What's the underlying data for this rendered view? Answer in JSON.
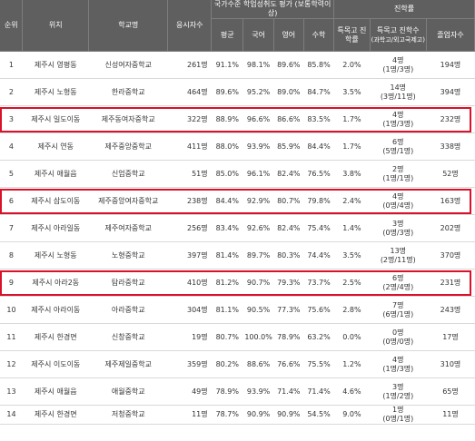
{
  "header": {
    "rank": "순위",
    "location": "위치",
    "school": "학교명",
    "examinees": "응시자수",
    "assessment_group": "국가수준 학업성취도 평가 (보통학력이상)",
    "avg": "평균",
    "korean": "국어",
    "english": "영어",
    "math": "수학",
    "progress_group": "진학률",
    "special_rate": "특목고 진학률",
    "special_count": "특목고 진학수",
    "special_count_sub": "(과학고/외고국제고)",
    "graduates": "졸업자수"
  },
  "rows": [
    {
      "rank": "1",
      "location": "제주시 영평동",
      "school": "신성여자중학교",
      "examinees": "261명",
      "avg": "91.1%",
      "korean": "98.1%",
      "english": "89.6%",
      "math": "85.8%",
      "special_rate": "2.0%",
      "special_count": "4명",
      "special_detail": "(1명/3명)",
      "graduates": "194명",
      "highlight": false
    },
    {
      "rank": "2",
      "location": "제주시 노형동",
      "school": "한라중학교",
      "examinees": "464명",
      "avg": "89.6%",
      "korean": "95.2%",
      "english": "89.0%",
      "math": "84.7%",
      "special_rate": "3.5%",
      "special_count": "14명",
      "special_detail": "(3명/11명)",
      "graduates": "394명",
      "highlight": false
    },
    {
      "rank": "3",
      "location": "제주시 일도이동",
      "school": "제주동여자중학교",
      "examinees": "322명",
      "avg": "88.9%",
      "korean": "96.6%",
      "english": "86.6%",
      "math": "83.5%",
      "special_rate": "1.7%",
      "special_count": "4명",
      "special_detail": "(1명/3명)",
      "graduates": "232명",
      "highlight": true
    },
    {
      "rank": "4",
      "location": "제주시 연동",
      "school": "제주중앙중학교",
      "examinees": "411명",
      "avg": "88.0%",
      "korean": "93.9%",
      "english": "85.9%",
      "math": "84.4%",
      "special_rate": "1.7%",
      "special_count": "6명",
      "special_detail": "(5명/1명)",
      "graduates": "338명",
      "highlight": false
    },
    {
      "rank": "5",
      "location": "제주시 애월읍",
      "school": "신엄중학교",
      "examinees": "51명",
      "avg": "85.0%",
      "korean": "96.1%",
      "english": "82.4%",
      "math": "76.5%",
      "special_rate": "3.8%",
      "special_count": "2명",
      "special_detail": "(1명/1명)",
      "graduates": "52명",
      "highlight": false
    },
    {
      "rank": "6",
      "location": "제주시 삼도이동",
      "school": "제주중앙여자중학교",
      "examinees": "238명",
      "avg": "84.4%",
      "korean": "92.9%",
      "english": "80.7%",
      "math": "79.8%",
      "special_rate": "2.4%",
      "special_count": "4명",
      "special_detail": "(0명/4명)",
      "graduates": "163명",
      "highlight": true
    },
    {
      "rank": "7",
      "location": "제주시 아라일동",
      "school": "제주여자중학교",
      "examinees": "256명",
      "avg": "83.4%",
      "korean": "92.6%",
      "english": "82.4%",
      "math": "75.4%",
      "special_rate": "1.4%",
      "special_count": "3명",
      "special_detail": "(0명/3명)",
      "graduates": "202명",
      "highlight": false
    },
    {
      "rank": "8",
      "location": "제주시 노형동",
      "school": "노형중학교",
      "examinees": "397명",
      "avg": "81.4%",
      "korean": "89.7%",
      "english": "80.3%",
      "math": "74.4%",
      "special_rate": "3.5%",
      "special_count": "13명",
      "special_detail": "(2명/11명)",
      "graduates": "370명",
      "highlight": false
    },
    {
      "rank": "9",
      "location": "제주시 아라2동",
      "school": "탐라중학교",
      "examinees": "410명",
      "avg": "81.2%",
      "korean": "90.7%",
      "english": "79.3%",
      "math": "73.7%",
      "special_rate": "2.5%",
      "special_count": "6명",
      "special_detail": "(2명/4명)",
      "graduates": "231명",
      "highlight": true
    },
    {
      "rank": "10",
      "location": "제주시 아라이동",
      "school": "아라중학교",
      "examinees": "304명",
      "avg": "81.1%",
      "korean": "90.5%",
      "english": "77.3%",
      "math": "75.6%",
      "special_rate": "2.8%",
      "special_count": "7명",
      "special_detail": "(6명/1명)",
      "graduates": "243명",
      "highlight": false
    },
    {
      "rank": "11",
      "location": "제주시 한경면",
      "school": "신창중학교",
      "examinees": "19명",
      "avg": "80.7%",
      "korean": "100.0%",
      "english": "78.9%",
      "math": "63.2%",
      "special_rate": "0.0%",
      "special_count": "0명",
      "special_detail": "(0명/0명)",
      "graduates": "17명",
      "highlight": false
    },
    {
      "rank": "12",
      "location": "제주시 이도이동",
      "school": "제주제일중학교",
      "examinees": "359명",
      "avg": "80.2%",
      "korean": "88.6%",
      "english": "76.6%",
      "math": "75.5%",
      "special_rate": "1.2%",
      "special_count": "4명",
      "special_detail": "(1명/3명)",
      "graduates": "310명",
      "highlight": false
    },
    {
      "rank": "13",
      "location": "제주시 애월읍",
      "school": "애월중학교",
      "examinees": "49명",
      "avg": "78.9%",
      "korean": "93.9%",
      "english": "71.4%",
      "math": "71.4%",
      "special_rate": "4.6%",
      "special_count": "3명",
      "special_detail": "(1명/2명)",
      "graduates": "65명",
      "highlight": false
    },
    {
      "rank": "14",
      "location": "제주시 한경면",
      "school": "저청중학교",
      "examinees": "11명",
      "avg": "78.7%",
      "korean": "90.9%",
      "english": "90.9%",
      "math": "54.5%",
      "special_rate": "9.0%",
      "special_count": "1명",
      "special_detail": "(0명/1명)",
      "graduates": "11명",
      "highlight": false
    }
  ]
}
